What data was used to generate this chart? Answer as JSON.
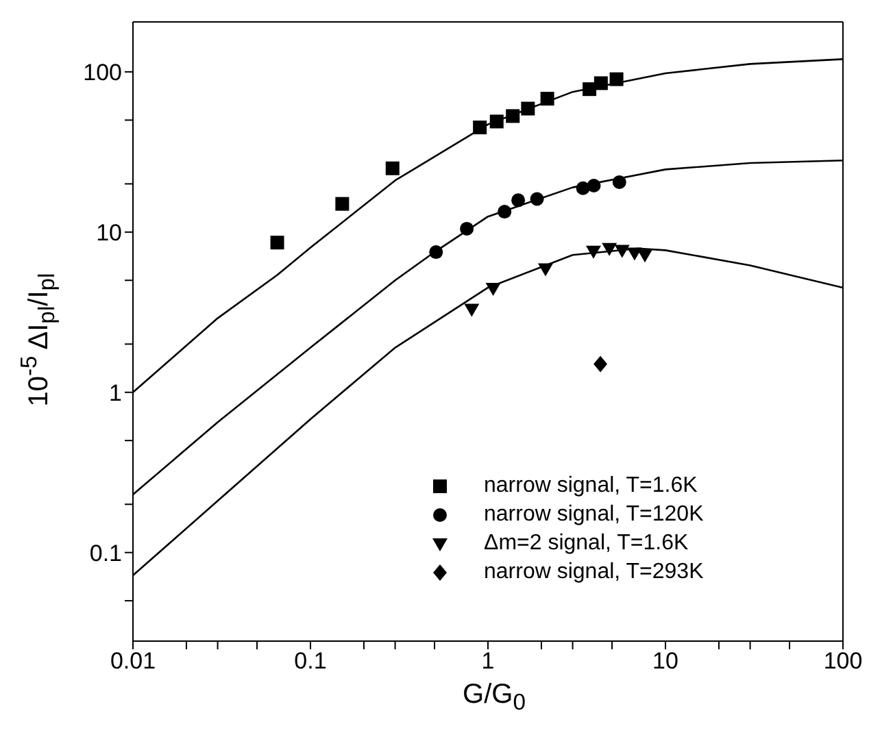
{
  "chart_data": {
    "type": "scatter",
    "xlabel": "G/G$_{0}$",
    "ylabel": "10$^{-5}$ ΔI$_{pl}$/I$_{pl}$",
    "log": "xy",
    "xlim": [
      0.01,
      100
    ],
    "ylim": [
      0.028,
      205
    ],
    "xticks": [
      0.01,
      {
        "value": 0.02,
        "label": null
      },
      {
        "value": 0.03,
        "label": null
      },
      {
        "value": 0.05,
        "label": null
      },
      0.1,
      {
        "value": 0.2,
        "label": null
      },
      {
        "value": 0.3,
        "label": null
      },
      {
        "value": 0.5,
        "label": null
      },
      1,
      {
        "value": 2,
        "label": null
      },
      {
        "value": 3,
        "label": null
      },
      {
        "value": 5,
        "label": null
      },
      10,
      {
        "value": 20,
        "label": null
      },
      {
        "value": 30,
        "label": null
      },
      {
        "value": 50,
        "label": null
      },
      100
    ],
    "yticks": [
      {
        "value": 0.05,
        "label": null
      },
      0.1,
      {
        "value": 0.2,
        "label": null
      },
      {
        "value": 0.5,
        "label": null
      },
      1,
      {
        "value": 2,
        "label": null
      },
      {
        "value": 5,
        "label": null
      },
      10,
      {
        "value": 20,
        "label": null
      },
      {
        "value": 50,
        "label": null
      },
      100
    ],
    "legend": "bottom right",
    "series": [
      {
        "name": "narrow signal, T=1.6K",
        "color": "#000000",
        "marker": "square",
        "x": [
          0.065,
          0.151,
          0.29,
          0.9,
          1.12,
          1.38,
          1.68,
          2.16,
          3.73,
          4.33,
          5.3
        ],
        "values": [
          8.6,
          15,
          25,
          45,
          49,
          53,
          59,
          68,
          78,
          85,
          90
        ]
      },
      {
        "name": "narrow signal, T=120K",
        "color": "#000000",
        "marker": "circle",
        "x": [
          0.51,
          0.76,
          1.24,
          1.48,
          1.89,
          3.43,
          3.95,
          5.5
        ],
        "values": [
          7.5,
          10.5,
          13.4,
          15.8,
          16.1,
          18.8,
          19.5,
          20.5
        ]
      },
      {
        "name": "Δm=2 signal, T=1.6K",
        "color": "#000000",
        "marker": "triangle",
        "x": [
          0.81,
          1.07,
          2.11,
          3.93,
          4.83,
          5.7,
          6.7,
          7.66
        ],
        "values": [
          3.3,
          4.45,
          5.9,
          7.6,
          7.9,
          7.7,
          7.4,
          7.2
        ]
      },
      {
        "name": "narrow signal, T=293K",
        "color": "#000000",
        "marker": "diamond",
        "x": [
          4.3
        ],
        "values": [
          1.5
        ]
      },
      {
        "type": "line",
        "color": "#000000",
        "marker": "none",
        "x": [
          0.01,
          0.03,
          0.065,
          0.1,
          0.3,
          1,
          3,
          10,
          30,
          100
        ],
        "values": [
          1,
          2.9,
          5.4,
          8,
          21,
          47,
          75,
          98,
          112,
          120
        ]
      },
      {
        "type": "line",
        "color": "#000000",
        "marker": "none",
        "x": [
          0.01,
          0.03,
          0.1,
          0.3,
          0.5,
          1,
          3,
          10,
          30,
          100
        ],
        "values": [
          0.23,
          0.65,
          1.9,
          5,
          7.5,
          12.5,
          19,
          24.6,
          27,
          28
        ]
      },
      {
        "type": "line",
        "color": "#000000",
        "marker": "none",
        "x": [
          0.01,
          0.03,
          0.1,
          0.3,
          1,
          3,
          7,
          10,
          30,
          100
        ],
        "values": [
          0.072,
          0.21,
          0.68,
          1.9,
          4.5,
          7.2,
          7.9,
          7.7,
          6.2,
          4.5
        ]
      }
    ]
  }
}
